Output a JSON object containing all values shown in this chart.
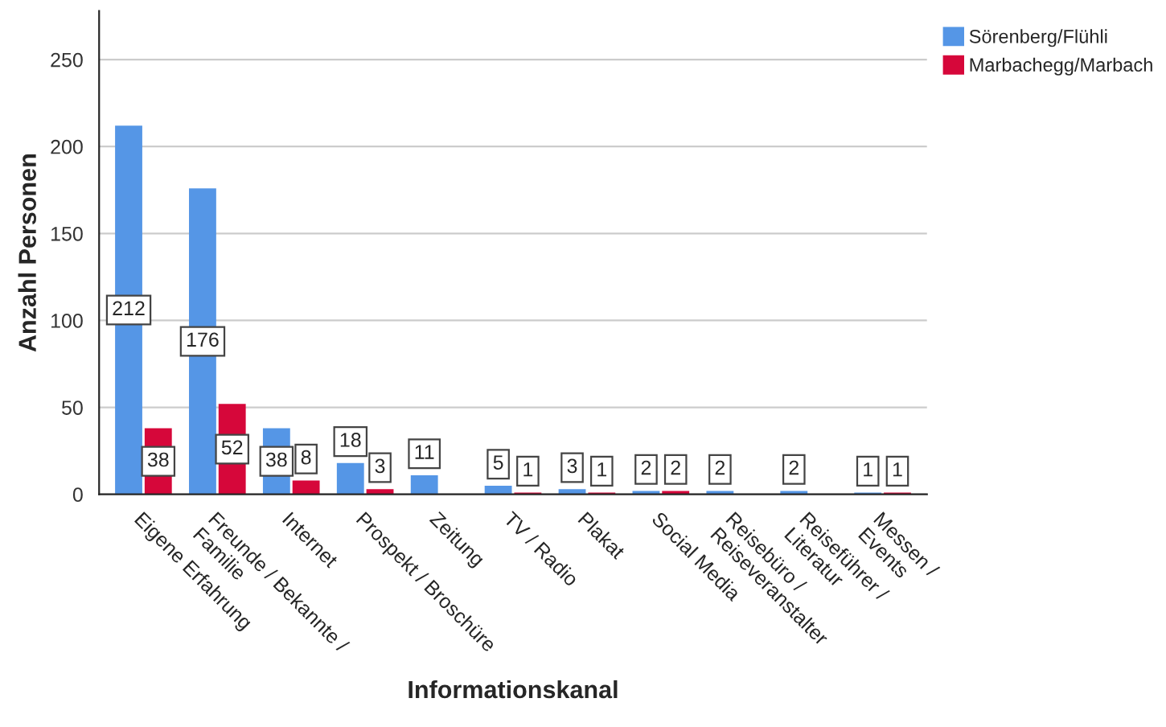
{
  "chart_data": {
    "type": "bar",
    "xlabel": "Informationskanal",
    "ylabel": "Anzahl Personen",
    "categories": [
      "Eigene Erfahrung",
      "Freunde / Bekannte /\nFamilie",
      "Internet",
      "Prospekt / Broschüre",
      "Zeitung",
      "TV / Radio",
      "Plakat",
      "Social Media",
      "Reisebüro /\nReiseveranstalter",
      "Reiseführer /\nLiteratur",
      "Messen /\nEvents"
    ],
    "series": [
      {
        "name": "Sörenberg/Flühli",
        "color": "#5596e6",
        "values": [
          212,
          176,
          38,
          18,
          11,
          5,
          3,
          2,
          2,
          2,
          1
        ]
      },
      {
        "name": "Marbachegg/Marbach",
        "color": "#d6073a",
        "values": [
          38,
          52,
          8,
          3,
          null,
          1,
          1,
          2,
          null,
          null,
          1
        ]
      }
    ],
    "ylim": [
      0,
      278
    ],
    "yticks": [
      0,
      50,
      100,
      150,
      200,
      250
    ],
    "grid": "y",
    "legend": "top right",
    "data_labels": true
  }
}
